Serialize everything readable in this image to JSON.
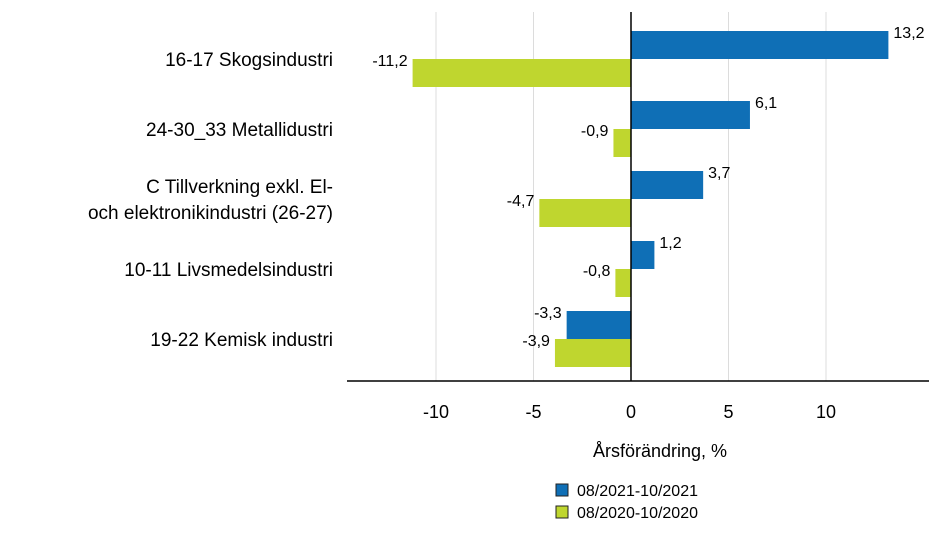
{
  "chart_data": {
    "type": "bar",
    "orientation": "horizontal",
    "categories": [
      [
        "16-17 Skogsindustri"
      ],
      [
        "24-30_33 Metallidustri"
      ],
      [
        "C Tillverkning exkl. El-",
        "och elektronikindustri  (26-27)"
      ],
      [
        "10-11 Livsmedelsindustri"
      ],
      [
        "19-22 Kemisk industri"
      ]
    ],
    "series": [
      {
        "name": "08/2021-10/2021",
        "color": "#0f6fb6",
        "values": [
          13.2,
          6.1,
          3.7,
          1.2,
          -3.3
        ],
        "labels": [
          "13,2",
          "6,1",
          "3,7",
          "1,2",
          "-3,3"
        ]
      },
      {
        "name": "08/2020-10/2020",
        "color": "#bfd62f",
        "values": [
          -11.2,
          -0.9,
          -4.7,
          -0.8,
          -3.9
        ],
        "labels": [
          "-11,2",
          "-0,9",
          "-4,7",
          "-0,8",
          "-3,9"
        ]
      }
    ],
    "xlabel": "Årsförändring, %",
    "xlim": [
      -14.5,
      15.5
    ],
    "xticks": [
      -10,
      -5,
      0,
      5,
      10
    ],
    "xtick_labels": [
      "-10",
      "-5",
      "0",
      "5",
      "10"
    ],
    "grid": "vertical",
    "legend_position": "bottom"
  }
}
